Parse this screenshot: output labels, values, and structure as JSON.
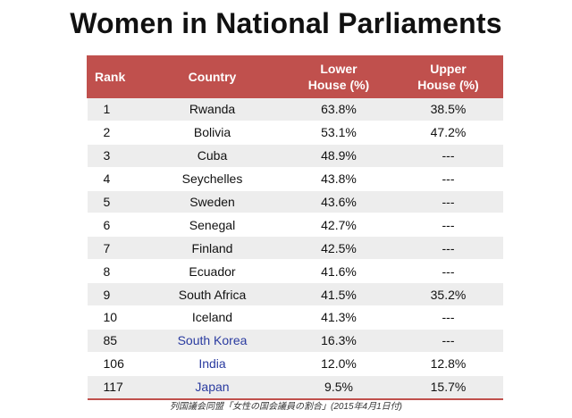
{
  "chart_data": {
    "type": "table",
    "title": "Women in National Parliaments",
    "columns": {
      "rank": "Rank",
      "country": "Country",
      "lower_line1": "Lower",
      "lower_line2": "House (%)",
      "upper_line1": "Upper",
      "upper_line2": "House (%)"
    },
    "rows": [
      {
        "rank": "1",
        "country": "Rwanda",
        "lower": "63.8%",
        "upper": "38.5%",
        "highlight": false
      },
      {
        "rank": "2",
        "country": "Bolivia",
        "lower": "53.1%",
        "upper": "47.2%",
        "highlight": false
      },
      {
        "rank": "3",
        "country": "Cuba",
        "lower": "48.9%",
        "upper": "---",
        "highlight": false
      },
      {
        "rank": "4",
        "country": "Seychelles",
        "lower": "43.8%",
        "upper": "---",
        "highlight": false
      },
      {
        "rank": "5",
        "country": "Sweden",
        "lower": "43.6%",
        "upper": "---",
        "highlight": false
      },
      {
        "rank": "6",
        "country": "Senegal",
        "lower": "42.7%",
        "upper": "---",
        "highlight": false
      },
      {
        "rank": "7",
        "country": "Finland",
        "lower": "42.5%",
        "upper": "---",
        "highlight": false
      },
      {
        "rank": "8",
        "country": "Ecuador",
        "lower": "41.6%",
        "upper": "---",
        "highlight": false
      },
      {
        "rank": "9",
        "country": "South Africa",
        "lower": "41.5%",
        "upper": "35.2%",
        "highlight": false
      },
      {
        "rank": "10",
        "country": "Iceland",
        "lower": "41.3%",
        "upper": "---",
        "highlight": false
      },
      {
        "rank": "85",
        "country": "South Korea",
        "lower": "16.3%",
        "upper": "---",
        "highlight": true
      },
      {
        "rank": "106",
        "country": "India",
        "lower": "12.0%",
        "upper": "12.8%",
        "highlight": true
      },
      {
        "rank": "117",
        "country": "Japan",
        "lower": "9.5%",
        "upper": "15.7%",
        "highlight": true
      }
    ],
    "source": "列国議会同盟「女性の国会議員の割合」(2015年4月1日付)"
  },
  "colors": {
    "header_bg": "#c0504d",
    "header_text": "#ffffff",
    "stripe": "#ededed",
    "highlight_text": "#2a3ba0"
  }
}
